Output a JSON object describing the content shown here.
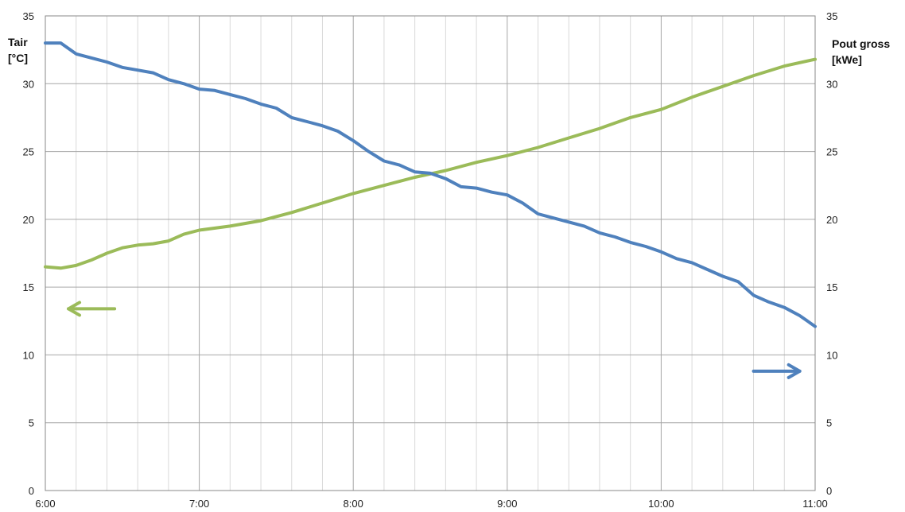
{
  "chart_data": {
    "type": "line",
    "left_axis_label": [
      "Tair",
      "[°C]"
    ],
    "right_axis_label": [
      "Pout gross",
      "[kWe]"
    ],
    "x_ticks": [
      "6:00",
      "7:00",
      "8:00",
      "9:00",
      "10:00",
      "11:00"
    ],
    "x_range_hours": [
      6,
      11
    ],
    "y_left_range": [
      0,
      35
    ],
    "y_right_range": [
      0,
      35
    ],
    "y_ticks": [
      "0",
      "5",
      "10",
      "15",
      "20",
      "25",
      "30",
      "35"
    ],
    "grid": {
      "major_x": true,
      "minor_x_per_hour": 4,
      "major_y": true
    },
    "colors": {
      "tair": "#9BBB59",
      "pout": "#4F81BD",
      "grid_major": "#a6a6a6",
      "grid_minor": "#d9d9d9"
    },
    "series": [
      {
        "axis": "left",
        "color": "#9BBB59",
        "points": [
          [
            6.0,
            16.5
          ],
          [
            6.1,
            16.4
          ],
          [
            6.2,
            16.6
          ],
          [
            6.3,
            17.0
          ],
          [
            6.4,
            17.5
          ],
          [
            6.5,
            17.9
          ],
          [
            6.6,
            18.1
          ],
          [
            6.7,
            18.2
          ],
          [
            6.8,
            18.4
          ],
          [
            6.9,
            18.9
          ],
          [
            7.0,
            19.2
          ],
          [
            7.2,
            19.5
          ],
          [
            7.4,
            19.9
          ],
          [
            7.6,
            20.5
          ],
          [
            7.8,
            21.2
          ],
          [
            8.0,
            21.9
          ],
          [
            8.2,
            22.5
          ],
          [
            8.4,
            23.1
          ],
          [
            8.6,
            23.6
          ],
          [
            8.8,
            24.2
          ],
          [
            9.0,
            24.7
          ],
          [
            9.2,
            25.3
          ],
          [
            9.4,
            26.0
          ],
          [
            9.6,
            26.7
          ],
          [
            9.8,
            27.5
          ],
          [
            10.0,
            28.1
          ],
          [
            10.2,
            29.0
          ],
          [
            10.4,
            29.8
          ],
          [
            10.6,
            30.6
          ],
          [
            10.8,
            31.3
          ],
          [
            11.0,
            31.8
          ]
        ]
      },
      {
        "axis": "right",
        "color": "#4F81BD",
        "points": [
          [
            6.0,
            33.0
          ],
          [
            6.1,
            33.0
          ],
          [
            6.2,
            32.2
          ],
          [
            6.3,
            31.9
          ],
          [
            6.4,
            31.6
          ],
          [
            6.5,
            31.2
          ],
          [
            6.6,
            31.0
          ],
          [
            6.7,
            30.8
          ],
          [
            6.8,
            30.3
          ],
          [
            6.9,
            30.0
          ],
          [
            7.0,
            29.6
          ],
          [
            7.1,
            29.5
          ],
          [
            7.2,
            29.2
          ],
          [
            7.3,
            28.9
          ],
          [
            7.4,
            28.5
          ],
          [
            7.5,
            28.2
          ],
          [
            7.6,
            27.5
          ],
          [
            7.7,
            27.2
          ],
          [
            7.8,
            26.9
          ],
          [
            7.9,
            26.5
          ],
          [
            8.0,
            25.8
          ],
          [
            8.1,
            25.0
          ],
          [
            8.2,
            24.3
          ],
          [
            8.3,
            24.0
          ],
          [
            8.4,
            23.5
          ],
          [
            8.5,
            23.4
          ],
          [
            8.6,
            23.0
          ],
          [
            8.7,
            22.4
          ],
          [
            8.8,
            22.3
          ],
          [
            8.9,
            22.0
          ],
          [
            9.0,
            21.8
          ],
          [
            9.1,
            21.2
          ],
          [
            9.2,
            20.4
          ],
          [
            9.3,
            20.1
          ],
          [
            9.4,
            19.8
          ],
          [
            9.5,
            19.5
          ],
          [
            9.6,
            19.0
          ],
          [
            9.7,
            18.7
          ],
          [
            9.8,
            18.3
          ],
          [
            9.9,
            18.0
          ],
          [
            10.0,
            17.6
          ],
          [
            10.1,
            17.1
          ],
          [
            10.2,
            16.8
          ],
          [
            10.3,
            16.3
          ],
          [
            10.4,
            15.8
          ],
          [
            10.5,
            15.4
          ],
          [
            10.6,
            14.4
          ],
          [
            10.7,
            13.9
          ],
          [
            10.8,
            13.5
          ],
          [
            10.9,
            12.9
          ],
          [
            11.0,
            12.1
          ]
        ]
      }
    ],
    "annotations": [
      {
        "direction": "left",
        "color": "#9BBB59",
        "from": [
          6.45,
          13.4
        ],
        "to": [
          6.15,
          13.4
        ]
      },
      {
        "direction": "right",
        "color": "#4F81BD",
        "from": [
          10.6,
          8.8
        ],
        "to": [
          10.9,
          8.8
        ]
      }
    ]
  }
}
